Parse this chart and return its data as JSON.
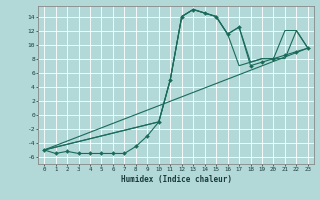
{
  "xlabel": "Humidex (Indice chaleur)",
  "bg_color": "#b2d8d8",
  "line_color": "#1a6b5a",
  "grid_color": "#ffffff",
  "xlim": [
    -0.5,
    23.5
  ],
  "ylim": [
    -7,
    15.5
  ],
  "xticks": [
    0,
    1,
    2,
    3,
    4,
    5,
    6,
    7,
    8,
    9,
    10,
    11,
    12,
    13,
    14,
    15,
    16,
    17,
    18,
    19,
    20,
    21,
    22,
    23
  ],
  "yticks": [
    -6,
    -4,
    -2,
    0,
    2,
    4,
    6,
    8,
    10,
    12,
    14
  ],
  "line1_x": [
    0,
    1,
    2,
    3,
    4,
    5,
    6,
    7,
    8,
    9,
    10,
    11,
    12,
    13,
    14,
    15,
    16,
    17,
    18,
    19,
    20,
    21,
    22,
    23
  ],
  "line1_y": [
    -5,
    -5.5,
    -5.2,
    -5.5,
    -5.5,
    -5.5,
    -5.5,
    -5.5,
    -4.5,
    -3,
    -1,
    5,
    14,
    15,
    14.5,
    14,
    11.5,
    12.5,
    7,
    7.5,
    8,
    8.5,
    9,
    9.5
  ],
  "line2_x": [
    0,
    10,
    11,
    12,
    13,
    14,
    15,
    16,
    17,
    18,
    19,
    20,
    21,
    22,
    23
  ],
  "line2_y": [
    -5,
    -1,
    5,
    14,
    15,
    14.5,
    14,
    11.5,
    12.5,
    7.5,
    8,
    8,
    12,
    12,
    9.5
  ],
  "line3_x": [
    0,
    10,
    11,
    12,
    13,
    14,
    15,
    16,
    17,
    18,
    19,
    20,
    21,
    22,
    23
  ],
  "line3_y": [
    -5,
    -1,
    5,
    14,
    15,
    14.5,
    14,
    11.5,
    7,
    7.5,
    8,
    8,
    8,
    12,
    9.5
  ],
  "line4_x": [
    0,
    23
  ],
  "line4_y": [
    -5,
    9.5
  ],
  "marker_x": [
    0,
    1,
    2,
    3,
    4,
    5,
    6,
    7,
    8,
    9,
    10,
    11,
    12,
    13,
    14,
    15,
    16,
    17,
    18,
    19,
    20,
    21,
    22,
    23
  ],
  "marker_y": [
    -5,
    -5.5,
    -5.2,
    -5.5,
    -5.5,
    -5.5,
    -5.5,
    -5.5,
    -4.5,
    -3,
    -1,
    5,
    14,
    15,
    14.5,
    14,
    11.5,
    12.5,
    7,
    7.5,
    8,
    8.5,
    9,
    9.5
  ]
}
